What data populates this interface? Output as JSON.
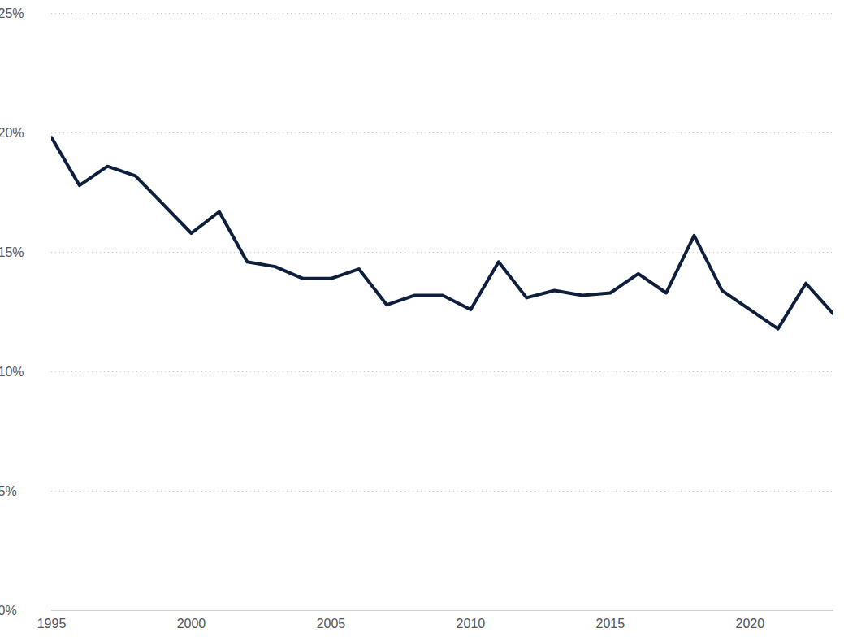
{
  "chart_data": {
    "type": "line",
    "x": [
      1995,
      1996,
      1997,
      1998,
      1999,
      2000,
      2001,
      2002,
      2003,
      2004,
      2005,
      2006,
      2007,
      2008,
      2009,
      2010,
      2011,
      2012,
      2013,
      2014,
      2015,
      2016,
      2017,
      2018,
      2019,
      2020,
      2021,
      2022,
      2023
    ],
    "values": [
      19.8,
      17.8,
      18.6,
      18.2,
      17.0,
      15.8,
      16.7,
      14.6,
      14.4,
      13.9,
      13.9,
      14.3,
      12.8,
      13.2,
      13.2,
      12.6,
      14.6,
      13.1,
      13.4,
      13.2,
      13.3,
      14.1,
      13.3,
      15.7,
      13.4,
      12.6,
      11.8,
      13.7,
      12.4
    ],
    "color": "#0d1f3c",
    "xlim": [
      1995,
      2023
    ],
    "xticks": [
      1995,
      2000,
      2005,
      2010,
      2015,
      2020
    ],
    "ylim": [
      0,
      25
    ],
    "yticks": [
      {
        "value": 0,
        "label": "0%"
      },
      {
        "value": 5,
        "label": "5%"
      },
      {
        "value": 10,
        "label": "10%"
      },
      {
        "value": 15,
        "label": "15%"
      },
      {
        "value": 20,
        "label": "20%"
      },
      {
        "value": 25,
        "label": "25%"
      }
    ],
    "grid": true
  }
}
